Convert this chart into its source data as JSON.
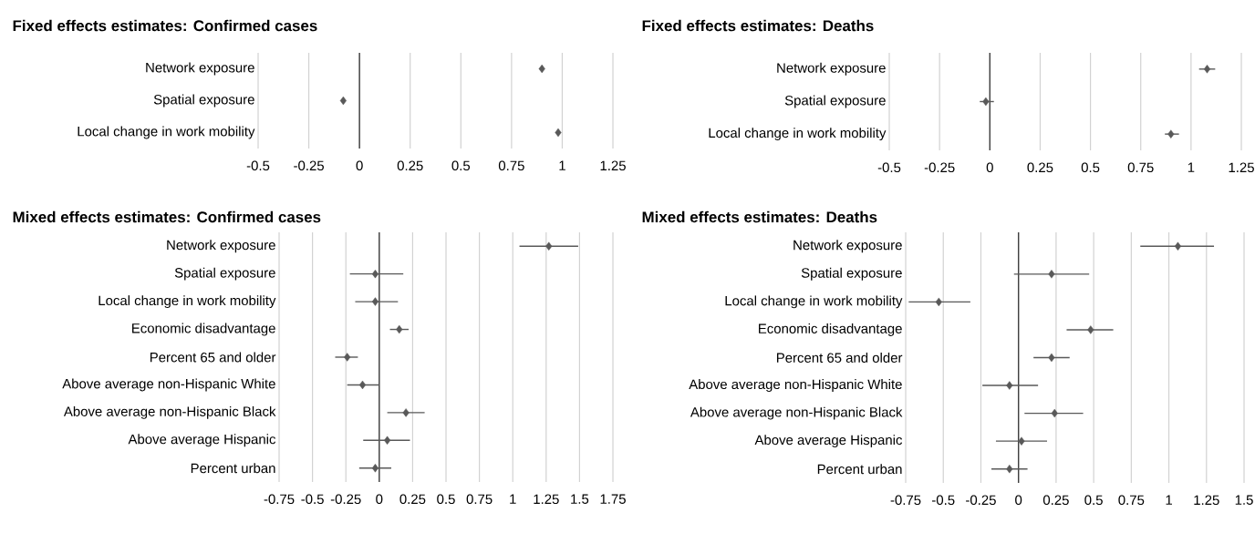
{
  "chart_data": [
    {
      "type": "scatter",
      "orientation": "horizontal",
      "title": "Fixed effects estimates: Confirmed cases",
      "categories": [
        "Network exposure",
        "Spatial exposure",
        "Local change in work mobility"
      ],
      "values": [
        0.9,
        -0.08,
        0.98
      ],
      "color": "#595959",
      "marker": "diamond",
      "grid": "x",
      "xlim": [
        -0.5,
        1.25
      ],
      "xticks": [
        -0.5,
        -0.25,
        0,
        0.25,
        0.5,
        0.75,
        1,
        1.25
      ]
    },
    {
      "type": "scatter",
      "orientation": "horizontal",
      "title": "Fixed effects estimates: Deaths",
      "categories": [
        "Network exposure",
        "Spatial exposure",
        "Local change in work mobility"
      ],
      "values": [
        1.08,
        -0.02,
        0.9
      ],
      "errors": [
        [
          1.04,
          1.12
        ],
        [
          -0.05,
          0.02
        ],
        [
          0.87,
          0.94
        ]
      ],
      "color": "#595959",
      "marker": "diamond",
      "grid": "x",
      "xlim": [
        -0.5,
        1.25
      ],
      "xticks": [
        -0.5,
        -0.25,
        0,
        0.25,
        0.5,
        0.75,
        1,
        1.25
      ]
    },
    {
      "type": "scatter",
      "orientation": "horizontal",
      "title": "Mixed effects estimates: Confirmed cases",
      "categories": [
        "Network exposure",
        "Spatial exposure",
        "Local change in work mobility",
        "Economic disadvantage",
        "Percent 65 and older",
        "Above average non-Hispanic White",
        "Above average non-Hispanic Black",
        "Above average Hispanic",
        "Percent urban"
      ],
      "values": [
        1.27,
        -0.03,
        -0.03,
        0.15,
        -0.24,
        -0.125,
        0.2,
        0.06,
        -0.03
      ],
      "errors": [
        [
          1.05,
          1.49
        ],
        [
          -0.22,
          0.18
        ],
        [
          -0.18,
          0.14
        ],
        [
          0.08,
          0.22
        ],
        [
          -0.33,
          -0.16
        ],
        [
          -0.24,
          0
        ],
        [
          0.06,
          0.34
        ],
        [
          -0.12,
          0.23
        ],
        [
          -0.15,
          0.09
        ]
      ],
      "color": "#595959",
      "marker": "diamond",
      "grid": "x",
      "xlim": [
        -0.75,
        1.75
      ],
      "xticks": [
        -0.75,
        -0.5,
        -0.25,
        0,
        0.25,
        0.5,
        0.75,
        1,
        1.25,
        1.5,
        1.75
      ]
    },
    {
      "type": "scatter",
      "orientation": "horizontal",
      "title": "Mixed effects estimates: Deaths",
      "categories": [
        "Network exposure",
        "Spatial exposure",
        "Local change in work mobility",
        "Economic disadvantage",
        "Percent 65 and older",
        "Above average non-Hispanic White",
        "Above average non-Hispanic Black",
        "Above average Hispanic",
        "Percent urban"
      ],
      "values": [
        1.06,
        0.22,
        -0.53,
        0.48,
        0.22,
        -0.06,
        0.24,
        0.02,
        -0.06
      ],
      "errors": [
        [
          0.81,
          1.3
        ],
        [
          -0.03,
          0.47
        ],
        [
          -0.73,
          -0.32
        ],
        [
          0.32,
          0.63
        ],
        [
          0.1,
          0.34
        ],
        [
          -0.24,
          0.13
        ],
        [
          0.04,
          0.43
        ],
        [
          -0.15,
          0.19
        ],
        [
          -0.18,
          0.06
        ]
      ],
      "color": "#595959",
      "marker": "diamond",
      "grid": "x",
      "xlim": [
        -0.75,
        1.5
      ],
      "xticks": [
        -0.75,
        -0.5,
        -0.25,
        0,
        0.25,
        0.5,
        0.75,
        1,
        1.25,
        1.5
      ]
    }
  ]
}
